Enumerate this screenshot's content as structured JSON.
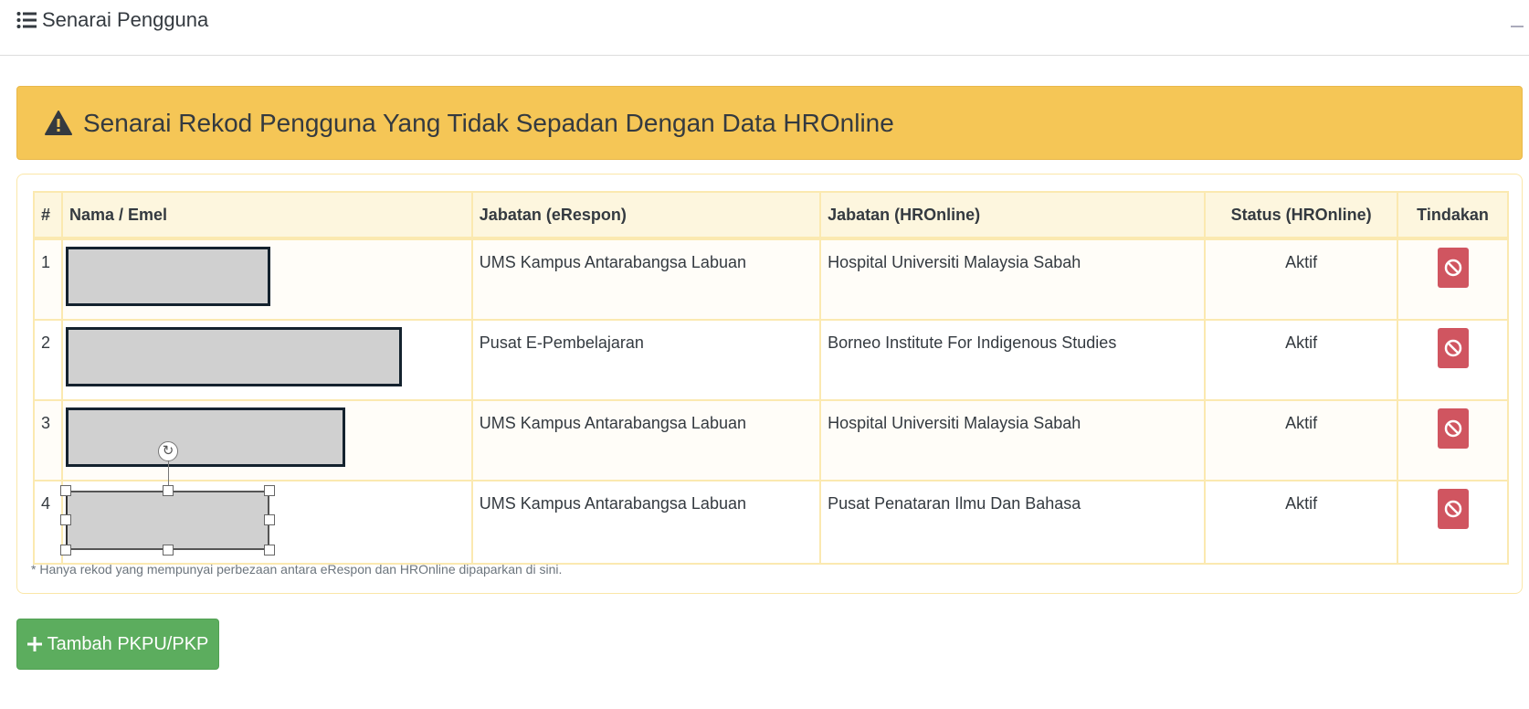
{
  "header": {
    "title": "Senarai Pengguna",
    "icon": "list-icon"
  },
  "alert": {
    "text": "Senarai Rekod Pengguna Yang Tidak Sepadan Dengan Data HROnline",
    "icon": "warning-icon",
    "color": "#f5c656"
  },
  "table": {
    "columns": [
      "#",
      "Nama / Emel",
      "Jabatan (eRespon)",
      "Jabatan (HROnline)",
      "Status (HROnline)",
      "Tindakan"
    ],
    "rows": [
      {
        "no": "1",
        "jab_erespon": "UMS Kampus Antarabangsa Labuan",
        "jab_hronline": "Hospital Universiti Malaysia Sabah",
        "status": "Aktif",
        "action_icon": "ban-icon"
      },
      {
        "no": "2",
        "jab_erespon": "Pusat E-Pembelajaran",
        "jab_hronline": "Borneo Institute For Indigenous Studies",
        "status": "Aktif",
        "action_icon": "ban-icon"
      },
      {
        "no": "3",
        "jab_erespon": "UMS Kampus Antarabangsa Labuan",
        "jab_hronline": "Hospital Universiti Malaysia Sabah",
        "status": "Aktif",
        "action_icon": "ban-icon"
      },
      {
        "no": "4",
        "jab_erespon": "UMS Kampus Antarabangsa Labuan",
        "jab_hronline": "Pusat Penataran Ilmu Dan Bahasa",
        "status": "Aktif",
        "action_icon": "ban-icon"
      }
    ]
  },
  "note": "* Hanya rekod yang mempunyai perbezaan antara eRespon dan HROnline dipaparkan di sini.",
  "add_button": {
    "label": "Tambah PKPU/PKP",
    "icon": "plus-icon",
    "color": "#5cad5e"
  },
  "danger_color": "#d05560"
}
